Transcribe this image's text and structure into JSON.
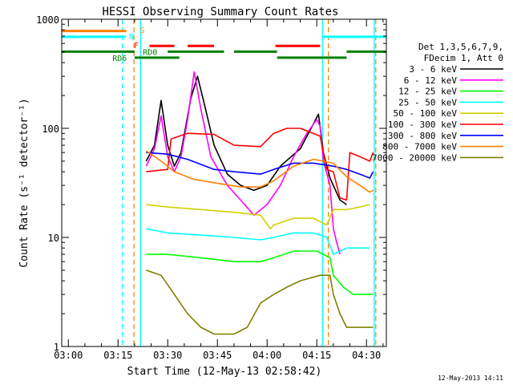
{
  "chart_data": {
    "type": "line",
    "title": "HESSI Observing Summary Count Rates",
    "xlabel": "Start Time (12-May-13 02:58:42)",
    "ylabel": "Count Rate (s⁻¹ detector⁻¹)",
    "yscale": "log",
    "ylim": [
      1,
      1000
    ],
    "xlim_minutes": [
      -2,
      96
    ],
    "y_ticks": [
      {
        "value": 1,
        "label": "1"
      },
      {
        "value": 10,
        "label": "10"
      },
      {
        "value": 100,
        "label": "100"
      },
      {
        "value": 1000,
        "label": "1000"
      }
    ],
    "x_ticks": [
      {
        "minute": 0,
        "label": "03:00"
      },
      {
        "minute": 15,
        "label": "03:15"
      },
      {
        "minute": 30,
        "label": "03:30"
      },
      {
        "minute": 45,
        "label": "03:45"
      },
      {
        "minute": 60,
        "label": "04:00"
      },
      {
        "minute": 75,
        "label": "04:15"
      },
      {
        "minute": 90,
        "label": "04:30"
      }
    ],
    "legend": {
      "header": [
        "Det 1,3,5,6,7,9,",
        "FDecim 1, Att 0"
      ],
      "placement": "right"
    },
    "series": [
      {
        "name": "3 - 6 keV",
        "color": "#000000",
        "points": [
          [
            23.5,
            50
          ],
          [
            26,
            70
          ],
          [
            28,
            180
          ],
          [
            30,
            70
          ],
          [
            32,
            45
          ],
          [
            34,
            60
          ],
          [
            37,
            190
          ],
          [
            39,
            300
          ],
          [
            41,
            170
          ],
          [
            44,
            70
          ],
          [
            48,
            38
          ],
          [
            52,
            30
          ],
          [
            56,
            27
          ],
          [
            60,
            30
          ],
          [
            64,
            45
          ],
          [
            70,
            65
          ],
          [
            74,
            110
          ],
          [
            75.5,
            135
          ],
          [
            77,
            60
          ],
          [
            79,
            35
          ],
          [
            82,
            22
          ],
          [
            84,
            20
          ]
        ]
      },
      {
        "name": "6 - 12 keV",
        "color": "#ff00ff",
        "points": [
          [
            23.5,
            45
          ],
          [
            26,
            65
          ],
          [
            28,
            130
          ],
          [
            30,
            55
          ],
          [
            32,
            40
          ],
          [
            34,
            55
          ],
          [
            36,
            120
          ],
          [
            38,
            330
          ],
          [
            40,
            150
          ],
          [
            43,
            55
          ],
          [
            48,
            30
          ],
          [
            52,
            22
          ],
          [
            56,
            16
          ],
          [
            60,
            20
          ],
          [
            64,
            30
          ],
          [
            68,
            55
          ],
          [
            72,
            90
          ],
          [
            75,
            120
          ],
          [
            76,
            105
          ],
          [
            77,
            50
          ],
          [
            79,
            30
          ],
          [
            80,
            12
          ],
          [
            81,
            9
          ],
          [
            82,
            7
          ]
        ]
      },
      {
        "name": "12 - 25 keV",
        "color": "#00ff00",
        "points": [
          [
            23.5,
            7
          ],
          [
            30,
            7
          ],
          [
            40,
            6.5
          ],
          [
            50,
            6
          ],
          [
            58,
            6
          ],
          [
            62,
            6.5
          ],
          [
            68,
            7.5
          ],
          [
            75,
            7.5
          ],
          [
            79,
            6.5
          ],
          [
            80,
            4.5
          ],
          [
            83,
            3.5
          ],
          [
            86,
            3
          ],
          [
            90,
            3
          ],
          [
            92,
            3
          ]
        ]
      },
      {
        "name": "25 - 50 keV",
        "color": "#00ffff",
        "points": [
          [
            23.5,
            12
          ],
          [
            30,
            11
          ],
          [
            40,
            10.5
          ],
          [
            50,
            10
          ],
          [
            58,
            9.5
          ],
          [
            62,
            10
          ],
          [
            68,
            11
          ],
          [
            74,
            11
          ],
          [
            78,
            10
          ],
          [
            80,
            7
          ],
          [
            84,
            8
          ],
          [
            88,
            8
          ],
          [
            91,
            8
          ]
        ]
      },
      {
        "name": "50 - 100 keV",
        "color": "#d0d000",
        "points": [
          [
            23.5,
            20
          ],
          [
            30,
            19
          ],
          [
            40,
            18
          ],
          [
            50,
            17
          ],
          [
            58,
            16
          ],
          [
            61,
            12
          ],
          [
            62,
            13
          ],
          [
            68,
            15
          ],
          [
            74,
            15
          ],
          [
            78,
            13
          ],
          [
            80,
            18
          ],
          [
            84,
            18
          ],
          [
            88,
            19
          ],
          [
            91,
            20
          ]
        ]
      },
      {
        "name": "100 - 300 keV",
        "color": "#ff0000",
        "points": [
          [
            23.5,
            40
          ],
          [
            30,
            42
          ],
          [
            31,
            80
          ],
          [
            36,
            90
          ],
          [
            44,
            88
          ],
          [
            50,
            70
          ],
          [
            58,
            68
          ],
          [
            62,
            90
          ],
          [
            66,
            100
          ],
          [
            70,
            100
          ],
          [
            76,
            85
          ],
          [
            78,
            42
          ],
          [
            80,
            40
          ],
          [
            82,
            23
          ],
          [
            84,
            22
          ],
          [
            85,
            60
          ],
          [
            88,
            55
          ],
          [
            91,
            50
          ],
          [
            92,
            60
          ]
        ]
      },
      {
        "name": "300 - 800 keV",
        "color": "#0000ff",
        "points": [
          [
            23.5,
            60
          ],
          [
            30,
            58
          ],
          [
            36,
            52
          ],
          [
            44,
            42
          ],
          [
            50,
            40
          ],
          [
            58,
            38
          ],
          [
            62,
            42
          ],
          [
            68,
            48
          ],
          [
            74,
            48
          ],
          [
            80,
            45
          ],
          [
            84,
            42
          ],
          [
            88,
            38
          ],
          [
            91,
            35
          ],
          [
            92,
            40
          ]
        ]
      },
      {
        "name": "800 - 7000 keV",
        "color": "#ff8000",
        "points": [
          [
            23.5,
            62
          ],
          [
            28,
            50
          ],
          [
            32,
            40
          ],
          [
            38,
            34
          ],
          [
            46,
            31
          ],
          [
            52,
            29
          ],
          [
            58,
            29
          ],
          [
            62,
            33
          ],
          [
            68,
            45
          ],
          [
            74,
            52
          ],
          [
            80,
            48
          ],
          [
            84,
            36
          ],
          [
            88,
            30
          ],
          [
            91,
            26
          ],
          [
            92,
            27
          ]
        ]
      },
      {
        "name": "7000 - 20000 keV",
        "color": "#808000",
        "points": [
          [
            23.5,
            5
          ],
          [
            28,
            4.5
          ],
          [
            32,
            3
          ],
          [
            36,
            2
          ],
          [
            40,
            1.5
          ],
          [
            44,
            1.3
          ],
          [
            50,
            1.3
          ],
          [
            54,
            1.5
          ],
          [
            58,
            2.5
          ],
          [
            62,
            3
          ],
          [
            66,
            3.5
          ],
          [
            70,
            4
          ],
          [
            76,
            4.5
          ],
          [
            79,
            4.5
          ],
          [
            80,
            3
          ],
          [
            82,
            2
          ],
          [
            84,
            1.5
          ],
          [
            88,
            1.5
          ],
          [
            92,
            1.5
          ]
        ]
      }
    ],
    "vertical_markers": [
      {
        "minute": 16.3,
        "style": "dashed",
        "color": "#00ffff"
      },
      {
        "minute": 19.8,
        "style": "dashed",
        "color": "#ff8000"
      },
      {
        "minute": 21.8,
        "style": "solid",
        "color": "#00ffff"
      },
      {
        "minute": 76.7,
        "style": "solid",
        "color": "#00ffff"
      },
      {
        "minute": 78.5,
        "style": "dashed",
        "color": "#ff8000"
      },
      {
        "minute": 92.3,
        "style": "solid",
        "color": "#00ffff"
      },
      {
        "minute": 92.8,
        "style": "dashed",
        "color": "#ff8000"
      }
    ],
    "flag_bars": [
      {
        "color": "#ff8000",
        "y_value": 780,
        "segments": [
          [
            -2,
            17.5
          ]
        ]
      },
      {
        "color": "#00ffff",
        "y_value": 690,
        "segments": [
          [
            -2,
            17.3
          ],
          [
            76.7,
            96
          ]
        ]
      },
      {
        "color": "#ff0000",
        "y_value": 570,
        "segments": [
          [
            24.5,
            32
          ],
          [
            36,
            44
          ],
          [
            62.5,
            76
          ]
        ]
      },
      {
        "color": "#008000",
        "y_value": 505,
        "segments": [
          [
            -2,
            20
          ],
          [
            30,
            47
          ],
          [
            50,
            63
          ],
          [
            84,
            96
          ]
        ]
      },
      {
        "color": "#008000",
        "y_value": 445,
        "segments": [
          [
            20,
            33.5
          ],
          [
            63,
            84
          ]
        ]
      }
    ],
    "flag_labels": [
      {
        "text": "S",
        "color": "#ff8000",
        "minute": 21.6,
        "y_value": 800
      },
      {
        "text": "N",
        "color": "#00ffff",
        "minute": 18.3,
        "y_value": 700
      },
      {
        "text": "F",
        "color": "#ff0000",
        "minute": 19.8,
        "y_value": 580
      },
      {
        "text": "RD0",
        "color": "#008000",
        "minute": 22.5,
        "y_value": 505
      },
      {
        "text": "RD6",
        "color": "#008000",
        "minute": 13.3,
        "y_value": 445
      }
    ],
    "footer": "12-May-2013 14:11"
  }
}
